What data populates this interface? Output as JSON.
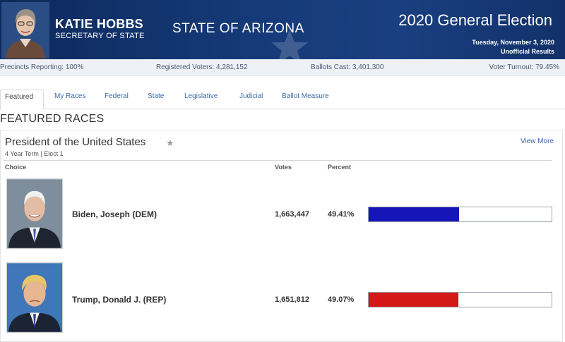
{
  "header": {
    "official_name": "KATIE HOBBS",
    "official_title": "SECRETARY OF STATE",
    "state": "STATE OF ARIZONA",
    "election": "2020 General Election",
    "date": "Tuesday, November 3, 2020",
    "status": "Unofficial Results"
  },
  "stats": {
    "precincts": "Precincts Reporting: 100%",
    "registered": "Registered Voters: 4,281,152",
    "ballots": "Ballots Cast: 3,401,300",
    "turnout": "Voter Turnout: 79.45%"
  },
  "tabs": [
    "Featured",
    "My Races",
    "Federal",
    "State",
    "Legislative",
    "Judicial",
    "Ballot Measure"
  ],
  "featured_heading": "FEATURED RACES",
  "race": {
    "title": "President of the United States",
    "star": "★",
    "view_more": "View More",
    "subtitle": "4 Year Term  |  Elect 1",
    "col_choice": "Choice",
    "col_votes": "Votes",
    "col_percent": "Percent",
    "candidates": [
      {
        "name": "Biden, Joseph (DEM)",
        "votes": "1,663,447",
        "percent": "49.41%",
        "share": 0.4941,
        "color": "#1515b8"
      },
      {
        "name": "Trump, Donald J. (REP)",
        "votes": "1,651,812",
        "percent": "49.07%",
        "share": 0.4907,
        "color": "#d41818"
      }
    ]
  },
  "colors": {
    "header_bg": "#163a78",
    "link": "#3d6aa8",
    "dem": "#1515b8",
    "rep": "#d41818"
  }
}
